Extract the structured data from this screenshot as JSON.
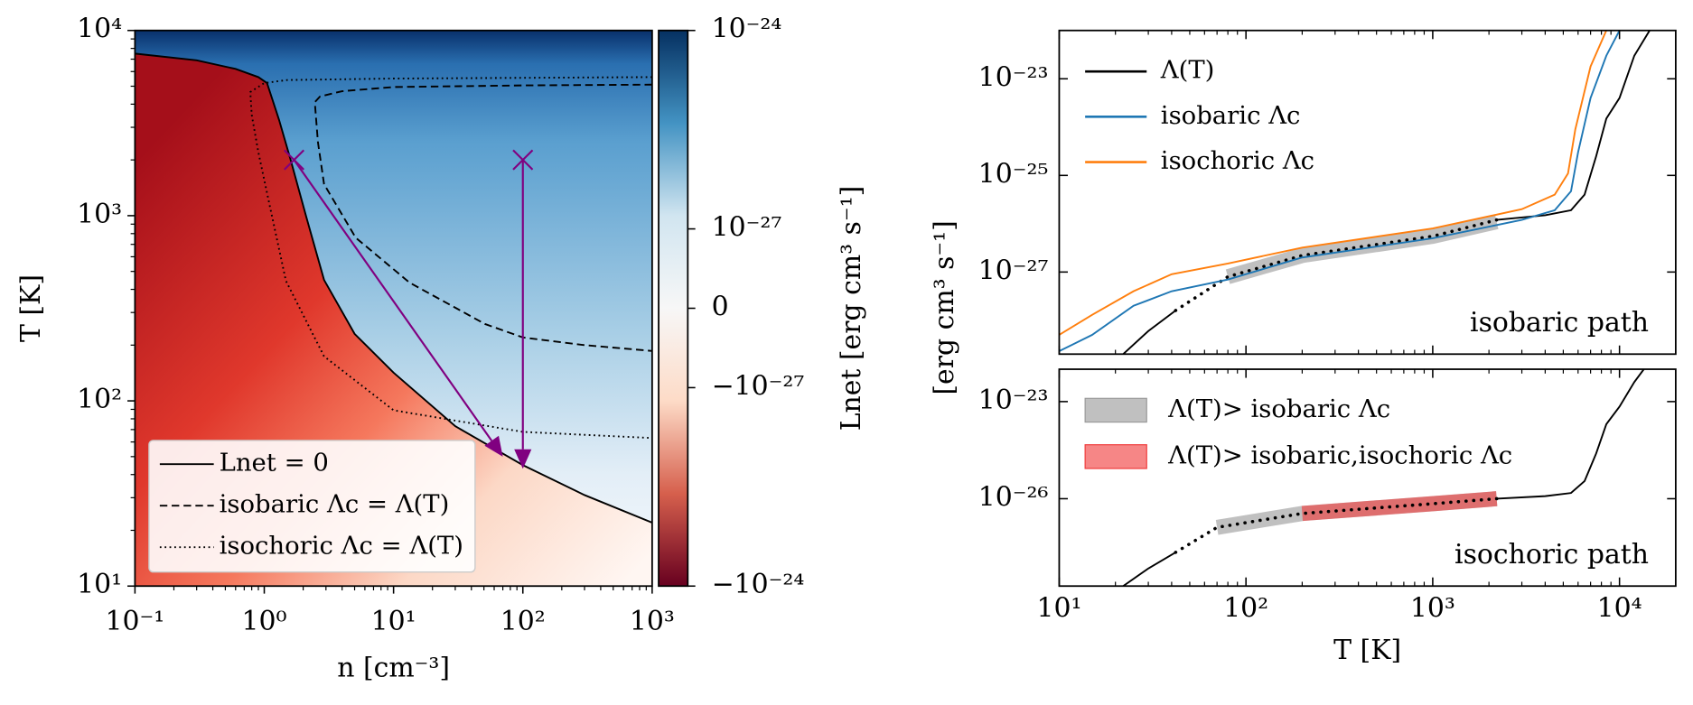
{
  "chart_data": [
    {
      "type": "heatmap",
      "xlabel": "n [cm⁻³]",
      "ylabel": "T [K]",
      "xlim": [
        0.1,
        1000
      ],
      "ylim": [
        10,
        10000
      ],
      "xlog": true,
      "ylog": true,
      "xticks": [
        {
          "value": 0.1,
          "label": "10⁻¹"
        },
        {
          "value": 1,
          "label": "10⁰"
        },
        {
          "value": 10,
          "label": "10¹"
        },
        {
          "value": 100,
          "label": "10²"
        },
        {
          "value": 1000,
          "label": "10³"
        }
      ],
      "yticks": [
        {
          "value": 10,
          "label": "10¹"
        },
        {
          "value": 100,
          "label": "10²"
        },
        {
          "value": 1000,
          "label": "10³"
        },
        {
          "value": 10000,
          "label": "10⁴"
        }
      ],
      "legend": "lower left",
      "series": [
        {
          "name": "Lnet = 0",
          "color": "#000000",
          "linestyle": "solid",
          "x": [
            0.1,
            0.3,
            0.6,
            0.9,
            1.05,
            1.3,
            1.6,
            2.1,
            2.9,
            5,
            10,
            30,
            100,
            300,
            1000
          ],
          "values": [
            7500,
            6900,
            6200,
            5600,
            5200,
            3300,
            2000,
            1000,
            450,
            230,
            142,
            73,
            45,
            31,
            22
          ]
        },
        {
          "name": "isobaric Λc = Λ(T)",
          "color": "#000000",
          "linestyle": "dashed",
          "x": [
            1000,
            100,
            10,
            4,
            2.7,
            2.46,
            2.6,
            2.9,
            5.1,
            13.3,
            51,
            100,
            300,
            1000
          ],
          "values": [
            5100,
            5050,
            4950,
            4700,
            4400,
            4100,
            2500,
            1480,
            760,
            435,
            260,
            220,
            200,
            186
          ]
        },
        {
          "name": "isochoric Λc = Λ(T)",
          "color": "#000000",
          "linestyle": "dotted",
          "x": [
            1000,
            10,
            1.5,
            1.0,
            0.78,
            0.8,
            0.9,
            1.1,
            1.47,
            2.9,
            10,
            100,
            1000
          ],
          "values": [
            5600,
            5500,
            5400,
            5200,
            4650,
            3500,
            2200,
            1140,
            445,
            174,
            89,
            68,
            63
          ]
        }
      ],
      "markers": {
        "x": [
          1.7,
          100
        ],
        "values": [
          2000,
          2000
        ],
        "color": "#800080"
      },
      "arrows": [
        {
          "x": [
            1.7,
            70
          ],
          "values": [
            2000,
            50
          ],
          "color": "#800080"
        },
        {
          "x": [
            100,
            100
          ],
          "values": [
            2000,
            43
          ],
          "color": "#800080"
        }
      ]
    },
    {
      "type": "colorbar",
      "label": "Lnet [erg cm³ s⁻¹]",
      "ylim": [
        -1e-24,
        1e-24
      ],
      "symlog": true,
      "linthresh": 1e-28,
      "linscale": 0.2,
      "yticks": [
        {
          "value": 1e-24,
          "label": "10⁻²⁴"
        },
        {
          "value": 1e-27,
          "label": "10⁻²⁷"
        },
        0,
        {
          "value": -1e-27,
          "label": "−10⁻²⁷"
        },
        {
          "value": -1e-24,
          "label": "−10⁻²⁴"
        }
      ],
      "colors": [
        "#67001f",
        "#d6604d",
        "#fddbc7",
        "#f7f7f7",
        "#d1e5f0",
        "#4393c3",
        "#053061"
      ]
    },
    {
      "type": "line",
      "ylabel": "[erg cm³ s⁻¹]",
      "annotation": "isobaric path",
      "xlim": [
        10,
        20000
      ],
      "ylim": [
        2e-29,
        1e-22
      ],
      "xlog": true,
      "ylog": true,
      "yticks": [
        {
          "value": 1e-23,
          "label": "10⁻²³"
        },
        {
          "value": 1e-25,
          "label": "10⁻²⁵"
        },
        {
          "value": 1e-27,
          "label": "10⁻²⁷"
        }
      ],
      "legend": "upper left",
      "bands": [
        {
          "color": "#999999",
          "x": [
            80,
            200,
            1000,
            2200
          ],
          "values": [
            8e-28,
            2.2e-27,
            5.5e-27,
            1.1e-26
          ]
        }
      ],
      "series": [
        {
          "name": "Λ(T)",
          "color": "#000000",
          "linestyle": "solid",
          "x": [
            22,
            30,
            42,
            1000,
            2200,
            4000,
            5500,
            6500,
            7500,
            8500,
            10000,
            12000,
            14500
          ],
          "values": [
            2e-29,
            6e-29,
            1.6e-28,
            null,
            1.2e-26,
            1.5e-26,
            1.9e-26,
            4e-26,
            2.5e-25,
            1.5e-24,
            4e-24,
            3e-23,
            1e-22
          ]
        },
        {
          "color": "#000000",
          "linestyle": "dotted",
          "x": [
            42,
            80,
            200,
            1000,
            2200
          ],
          "values": [
            1.6e-28,
            8e-28,
            2.2e-27,
            5.5e-27,
            1.2e-26
          ]
        },
        {
          "name": "isobaric Λc",
          "color": "#1f77b4",
          "linestyle": "solid",
          "x": [
            10,
            15,
            25,
            40,
            80,
            200,
            1000,
            3000,
            4500,
            5500,
            6000,
            7000,
            8500,
            10000
          ],
          "values": [
            2.3e-29,
            5e-29,
            2e-28,
            4e-28,
            7e-28,
            2e-27,
            5e-27,
            1.2e-26,
            1.9e-26,
            4.7e-26,
            3e-25,
            4e-24,
            3e-23,
            1e-22
          ]
        },
        {
          "name": "isochoric Λc",
          "color": "#ff7f0e",
          "linestyle": "solid",
          "x": [
            10,
            15,
            25,
            40,
            80,
            200,
            1000,
            3000,
            4500,
            5300,
            5800,
            7000,
            8500
          ],
          "values": [
            5e-29,
            1.3e-28,
            4e-28,
            9e-28,
            1.5e-27,
            3.2e-27,
            8e-27,
            2e-26,
            4e-26,
            1.1e-25,
            9e-25,
            1.8e-23,
            1e-22
          ]
        }
      ]
    },
    {
      "type": "line",
      "xlabel": "T [K]",
      "annotation": "isochoric path",
      "xlim": [
        10,
        20000
      ],
      "ylim": [
        2e-29,
        1e-22
      ],
      "xlog": true,
      "ylog": true,
      "xticks": [
        {
          "value": 10,
          "label": "10¹"
        },
        {
          "value": 100,
          "label": "10²"
        },
        {
          "value": 1000,
          "label": "10³"
        },
        {
          "value": 10000,
          "label": "10⁴"
        }
      ],
      "yticks": [
        {
          "value": 1e-23,
          "label": "10⁻²³"
        },
        {
          "value": 1e-26,
          "label": "10⁻²⁶"
        }
      ],
      "legend": "upper left",
      "bands": [
        {
          "name": "Λ(T)> isobaric Λc",
          "color": "#999999",
          "x": [
            70,
            200,
            1000,
            2200
          ],
          "values": [
            1.3e-27,
            3.5e-27,
            7e-27,
            1e-26
          ]
        },
        {
          "name": "Λ(T)> isobaric,isochoric Λc",
          "color": "#f03c3c",
          "x": [
            200,
            1000,
            2200
          ],
          "values": [
            3.5e-27,
            7e-27,
            1e-26
          ]
        }
      ],
      "series": [
        {
          "color": "#000000",
          "linestyle": "solid",
          "x": [
            22,
            30,
            42,
            1000,
            2200,
            4000,
            5500,
            6500,
            7500,
            8500,
            10000,
            12000,
            13500
          ],
          "values": [
            2e-29,
            7e-29,
            2.2e-28,
            null,
            1e-26,
            1.2e-26,
            1.5e-26,
            3.5e-26,
            2.5e-25,
            2e-24,
            7e-24,
            4e-23,
            1e-22
          ]
        },
        {
          "color": "#000000",
          "linestyle": "dotted",
          "x": [
            42,
            70,
            200,
            1000,
            2200
          ],
          "values": [
            2.2e-28,
            1.3e-27,
            3.5e-27,
            7e-27,
            1e-26
          ]
        }
      ]
    }
  ]
}
